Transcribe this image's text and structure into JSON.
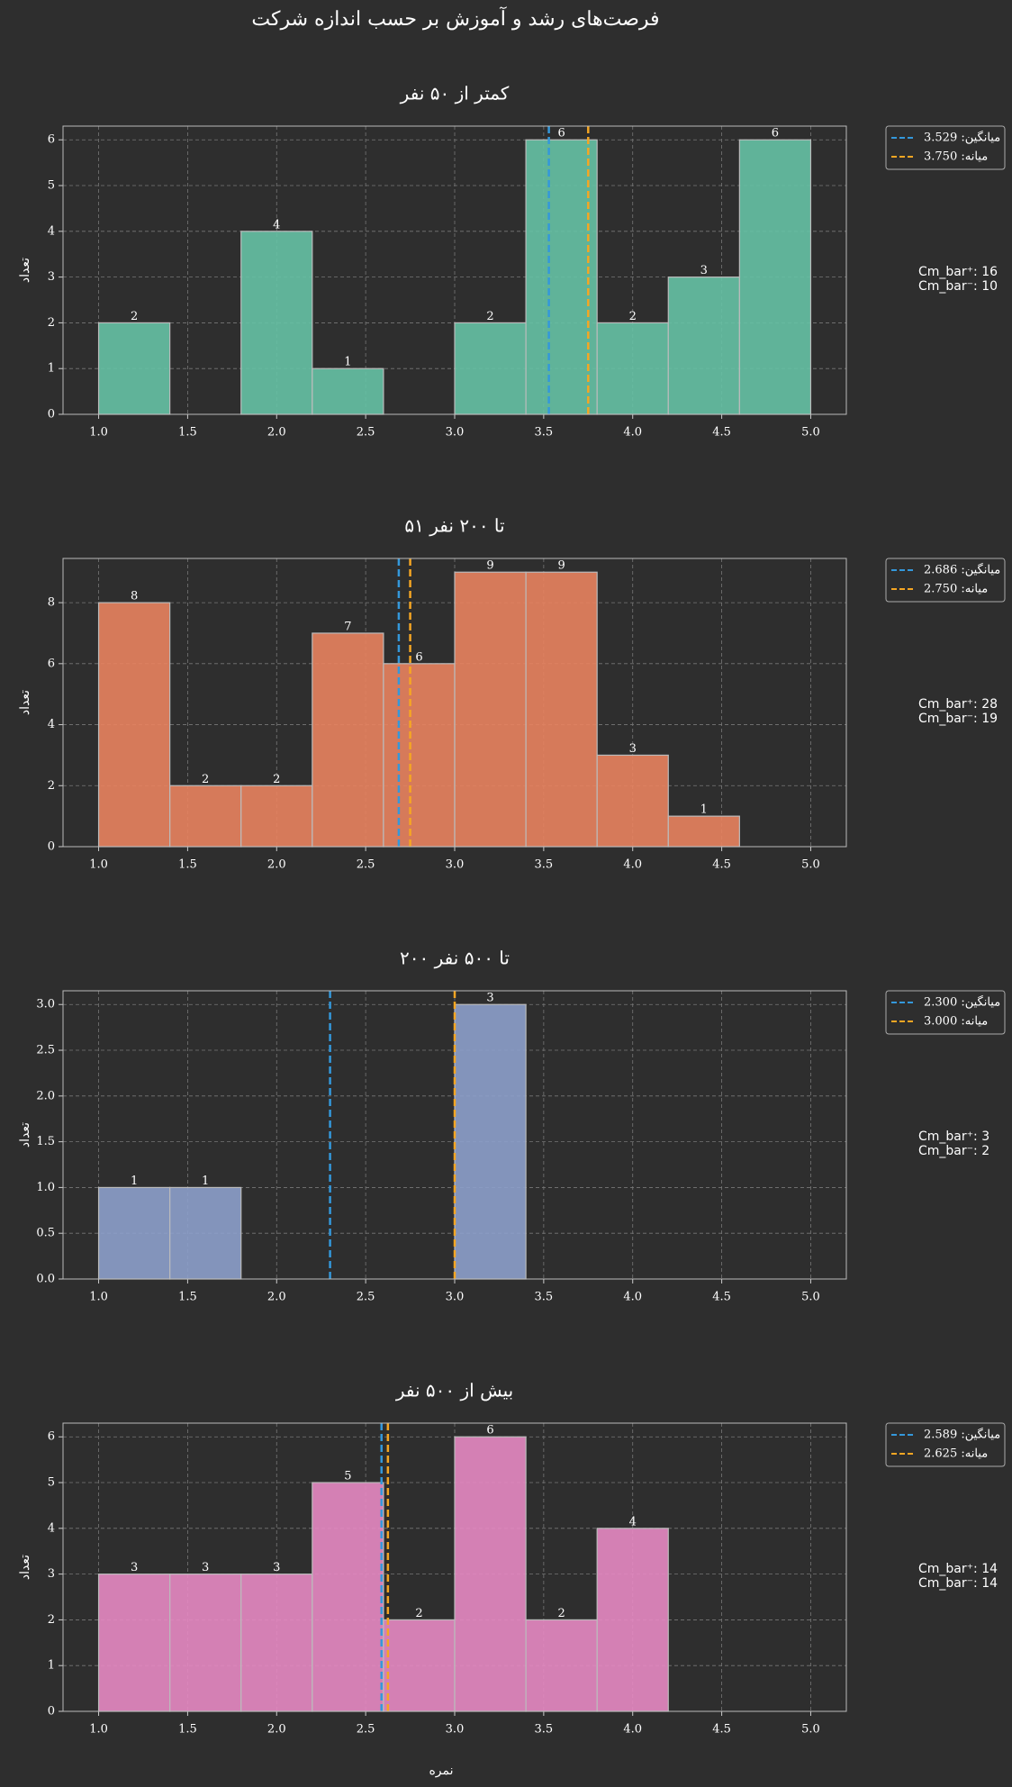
{
  "title": "فرصت‌های رشد و آموزش بر حسب اندازه شرکت",
  "xlabel": "نمره",
  "chart_data": [
    {
      "type": "histogram",
      "title": "کمتر از ۵۰ نفر",
      "ylabel": "تعداد",
      "bins": [
        1.0,
        1.4,
        1.8,
        2.2,
        2.6,
        3.0,
        3.4,
        3.8,
        4.2,
        4.6,
        5.0
      ],
      "values": [
        2,
        0,
        4,
        1,
        0,
        2,
        6,
        2,
        3,
        6
      ],
      "color": "#66c2a5",
      "xlim": [
        0.8,
        5.2
      ],
      "xticks": [
        {
          "value": 1.0,
          "label": "1.0"
        },
        {
          "value": 1.5,
          "label": "1.5"
        },
        {
          "value": 2.0,
          "label": "2.0"
        },
        {
          "value": 2.5,
          "label": "2.5"
        },
        {
          "value": 3.0,
          "label": "3.0"
        },
        {
          "value": 3.5,
          "label": "3.5"
        },
        {
          "value": 4.0,
          "label": "4.0"
        },
        {
          "value": 4.5,
          "label": "4.5"
        },
        {
          "value": 5.0,
          "label": "5.0"
        }
      ],
      "ylim": [
        0,
        6.3
      ],
      "yticks": [
        0,
        1,
        2,
        3,
        4,
        5,
        6
      ],
      "grid": true,
      "lines": [
        {
          "name": "میانگین: 3.529",
          "value": 3.529,
          "color": "#3498db"
        },
        {
          "name": "میانه: 3.750",
          "value": 3.75,
          "color": "#f5a623"
        }
      ],
      "annotation": [
        "Cm_bar⁺: 16",
        "Cm_bar⁻: 10"
      ]
    },
    {
      "type": "histogram",
      "title": "۵۱ تا ۲۰۰ نفر",
      "ylabel": "تعداد",
      "bins": [
        1.0,
        1.4,
        1.8,
        2.2,
        2.6,
        3.0,
        3.4,
        3.8,
        4.2,
        4.6,
        5.0
      ],
      "values": [
        8,
        2,
        2,
        7,
        6,
        9,
        9,
        3,
        1,
        0
      ],
      "color": "#e9835f",
      "xlim": [
        0.8,
        5.2
      ],
      "xticks": [
        {
          "value": 1.0,
          "label": "1.0"
        },
        {
          "value": 1.5,
          "label": "1.5"
        },
        {
          "value": 2.0,
          "label": "2.0"
        },
        {
          "value": 2.5,
          "label": "2.5"
        },
        {
          "value": 3.0,
          "label": "3.0"
        },
        {
          "value": 3.5,
          "label": "3.5"
        },
        {
          "value": 4.0,
          "label": "4.0"
        },
        {
          "value": 4.5,
          "label": "4.5"
        },
        {
          "value": 5.0,
          "label": "5.0"
        }
      ],
      "ylim": [
        0,
        9.45
      ],
      "yticks": [
        0,
        2,
        4,
        6,
        8
      ],
      "grid": true,
      "lines": [
        {
          "name": "میانگین: 2.686",
          "value": 2.686,
          "color": "#3498db"
        },
        {
          "name": "میانه: 2.750",
          "value": 2.75,
          "color": "#f5a623"
        }
      ],
      "annotation": [
        "Cm_bar⁺: 28",
        "Cm_bar⁻: 19"
      ]
    },
    {
      "type": "histogram",
      "title": "۲۰۰ تا ۵۰۰ نفر",
      "ylabel": "تعداد",
      "bins": [
        1.0,
        1.4,
        1.8,
        2.2,
        2.6,
        3.0,
        3.4,
        3.8,
        4.2,
        4.6,
        5.0
      ],
      "values": [
        1,
        1,
        0,
        0,
        0,
        3,
        0,
        0,
        0,
        0
      ],
      "color": "#8da0cb",
      "xlim": [
        0.8,
        5.2
      ],
      "xticks": [
        {
          "value": 1.0,
          "label": "1.0"
        },
        {
          "value": 1.5,
          "label": "1.5"
        },
        {
          "value": 2.0,
          "label": "2.0"
        },
        {
          "value": 2.5,
          "label": "2.5"
        },
        {
          "value": 3.0,
          "label": "3.0"
        },
        {
          "value": 3.5,
          "label": "3.5"
        },
        {
          "value": 4.0,
          "label": "4.0"
        },
        {
          "value": 4.5,
          "label": "4.5"
        },
        {
          "value": 5.0,
          "label": "5.0"
        }
      ],
      "ylim": [
        0,
        3.15
      ],
      "yticks": [
        {
          "value": 0,
          "label": "0.0"
        },
        {
          "value": 0.5,
          "label": "0.5"
        },
        {
          "value": 1,
          "label": "1.0"
        },
        {
          "value": 1.5,
          "label": "1.5"
        },
        {
          "value": 2,
          "label": "2.0"
        },
        {
          "value": 2.5,
          "label": "2.5"
        },
        {
          "value": 3,
          "label": "3.0"
        }
      ],
      "grid": true,
      "lines": [
        {
          "name": "میانگین: 2.300",
          "value": 2.3,
          "color": "#3498db"
        },
        {
          "name": "میانه: 3.000",
          "value": 3.0,
          "color": "#f5a623"
        }
      ],
      "annotation": [
        "Cm_bar⁺: 3",
        "Cm_bar⁻: 2"
      ]
    },
    {
      "type": "histogram",
      "title": "بیش از ۵۰۰ نفر",
      "ylabel": "تعداد",
      "bins": [
        1.0,
        1.4,
        1.8,
        2.2,
        2.6,
        3.0,
        3.4,
        3.8,
        4.2,
        4.6,
        5.0
      ],
      "values": [
        3,
        3,
        3,
        5,
        2,
        6,
        2,
        4,
        0,
        0
      ],
      "color": "#e78ac3",
      "xlim": [
        0.8,
        5.2
      ],
      "xticks": [
        {
          "value": 1.0,
          "label": "1.0"
        },
        {
          "value": 1.5,
          "label": "1.5"
        },
        {
          "value": 2.0,
          "label": "2.0"
        },
        {
          "value": 2.5,
          "label": "2.5"
        },
        {
          "value": 3.0,
          "label": "3.0"
        },
        {
          "value": 3.5,
          "label": "3.5"
        },
        {
          "value": 4.0,
          "label": "4.0"
        },
        {
          "value": 4.5,
          "label": "4.5"
        },
        {
          "value": 5.0,
          "label": "5.0"
        }
      ],
      "ylim": [
        0,
        6.3
      ],
      "yticks": [
        0,
        1,
        2,
        3,
        4,
        5,
        6
      ],
      "grid": true,
      "lines": [
        {
          "name": "میانگین: 2.589",
          "value": 2.589,
          "color": "#3498db"
        },
        {
          "name": "میانه: 2.625",
          "value": 2.625,
          "color": "#f5a623"
        }
      ],
      "annotation": [
        "Cm_bar⁺: 14",
        "Cm_bar⁻: 14"
      ]
    }
  ]
}
